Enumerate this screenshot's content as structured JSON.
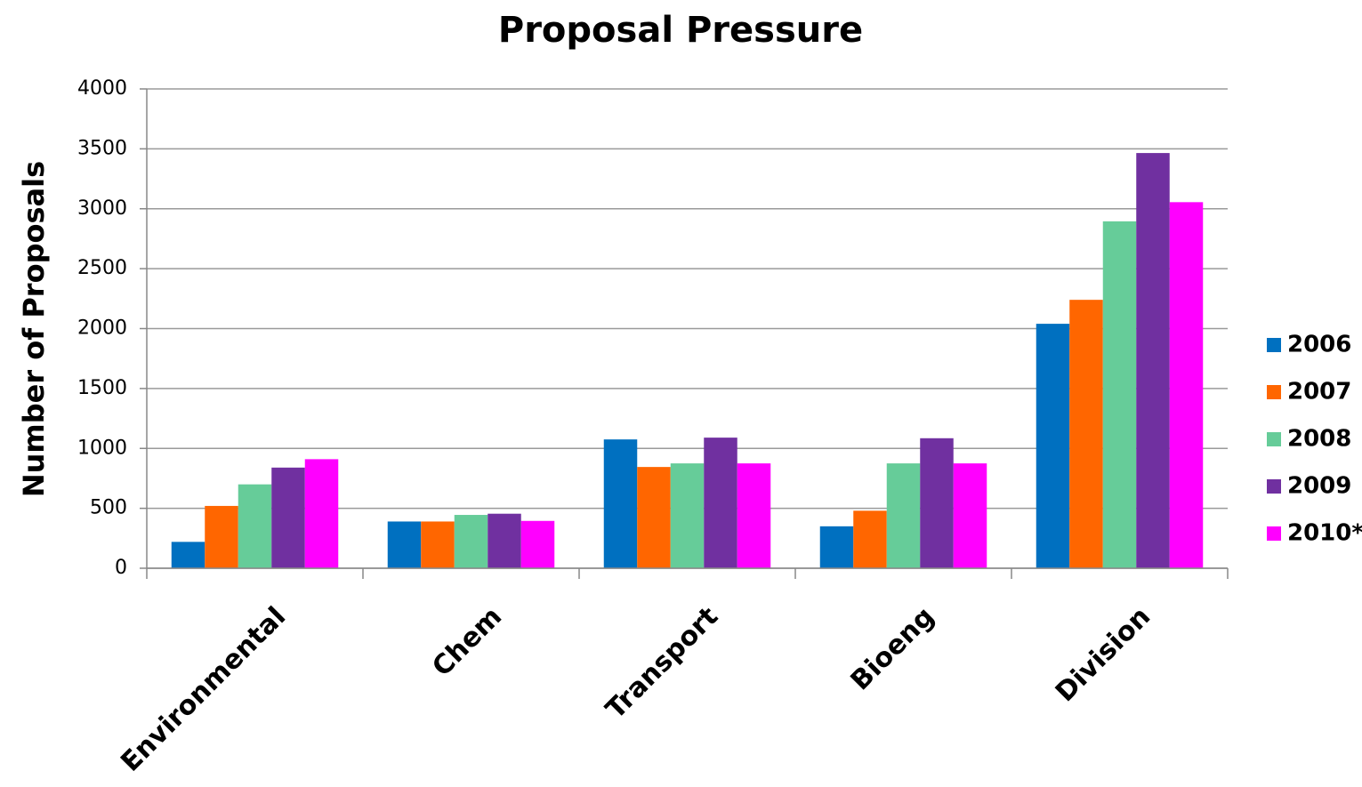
{
  "chart_data": {
    "type": "bar",
    "title": "Proposal Pressure",
    "y_label": "Number of Proposals",
    "categories": [
      "Environmental",
      "Chem",
      "Transport",
      "Bioeng",
      "Division"
    ],
    "series": [
      {
        "name": "2006",
        "color": "#0070c0",
        "values": [
          220,
          390,
          1075,
          350,
          2040
        ]
      },
      {
        "name": "2007",
        "color": "#ff6600",
        "values": [
          520,
          390,
          845,
          480,
          2240
        ]
      },
      {
        "name": "2008",
        "color": "#66cc99",
        "values": [
          700,
          445,
          875,
          875,
          2895
        ]
      },
      {
        "name": "2009",
        "color": "#7030a0",
        "values": [
          840,
          455,
          1090,
          1085,
          3465
        ]
      },
      {
        "name": "2010*",
        "color": "#ff00ff",
        "values": [
          910,
          395,
          875,
          875,
          3055
        ]
      }
    ],
    "ylim": [
      0,
      4000
    ],
    "yticks": [
      0,
      500,
      1000,
      1500,
      2000,
      2500,
      3000,
      3500,
      4000
    ],
    "grid": true,
    "legend": "right"
  }
}
